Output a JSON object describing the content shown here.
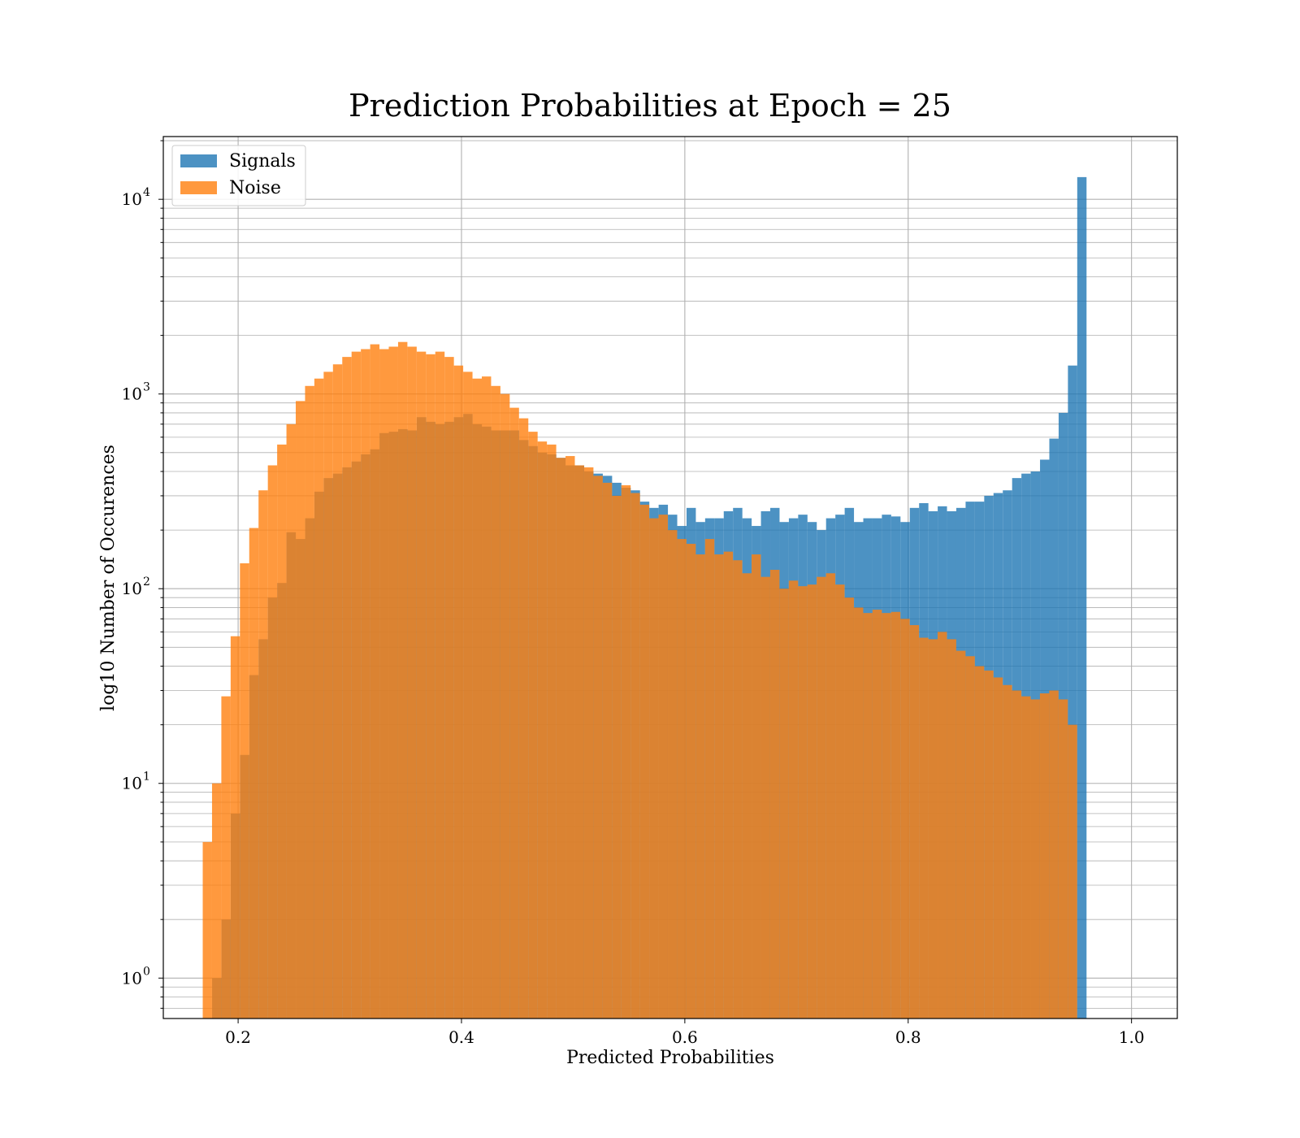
{
  "chart_data": {
    "type": "bar",
    "title": "Prediction Probabilities at Epoch = 25",
    "xlabel": "Predicted Probabilities",
    "ylabel": "log10 Number of Occurences",
    "yscale": "log",
    "xlim": [
      0.133,
      1.041
    ],
    "ylim": [
      0.62,
      21000
    ],
    "grid": true,
    "legend_position": "upper left",
    "x_ticks": [
      "0.2",
      "0.4",
      "0.6",
      "0.8",
      "1.0"
    ],
    "y_ticks": [
      {
        "base": "10",
        "exp": "0"
      },
      {
        "base": "10",
        "exp": "1"
      },
      {
        "base": "10",
        "exp": "2"
      },
      {
        "base": "10",
        "exp": "3"
      },
      {
        "base": "10",
        "exp": "4"
      }
    ],
    "bin_width": 0.00833,
    "series": [
      {
        "name": "Signals",
        "color": "#1f77b4",
        "bin_start": 0.1767,
        "values": [
          1,
          2,
          7,
          14,
          36,
          55,
          90,
          107,
          195,
          180,
          230,
          315,
          370,
          390,
          420,
          450,
          490,
          520,
          630,
          640,
          660,
          650,
          760,
          720,
          700,
          720,
          760,
          790,
          700,
          680,
          650,
          650,
          650,
          580,
          540,
          500,
          490,
          470,
          430,
          430,
          400,
          390,
          380,
          350,
          330,
          320,
          280,
          260,
          270,
          240,
          210,
          260,
          220,
          230,
          230,
          250,
          260,
          230,
          210,
          250,
          260,
          220,
          230,
          240,
          220,
          200,
          230,
          240,
          260,
          220,
          230,
          230,
          240,
          235,
          220,
          260,
          275,
          250,
          265,
          250,
          260,
          280,
          280,
          300,
          310,
          320,
          370,
          390,
          400,
          460,
          590,
          800,
          1400,
          13000
        ]
      },
      {
        "name": "Noise",
        "color": "#ff7f0e",
        "bin_start": 0.1683,
        "values": [
          5,
          10,
          28,
          57,
          135,
          205,
          320,
          430,
          550,
          700,
          920,
          1100,
          1200,
          1300,
          1420,
          1550,
          1650,
          1700,
          1800,
          1700,
          1750,
          1850,
          1750,
          1650,
          1600,
          1650,
          1550,
          1400,
          1300,
          1200,
          1230,
          1100,
          1000,
          850,
          750,
          640,
          570,
          550,
          470,
          480,
          430,
          420,
          380,
          350,
          300,
          340,
          310,
          270,
          230,
          240,
          200,
          180,
          170,
          150,
          180,
          150,
          155,
          140,
          120,
          150,
          115,
          125,
          100,
          110,
          103,
          105,
          115,
          120,
          105,
          90,
          80,
          75,
          78,
          75,
          76,
          70,
          65,
          56,
          55,
          60,
          55,
          48,
          45,
          40,
          38,
          35,
          32,
          30,
          28,
          27,
          29,
          30,
          27,
          20
        ]
      }
    ]
  }
}
